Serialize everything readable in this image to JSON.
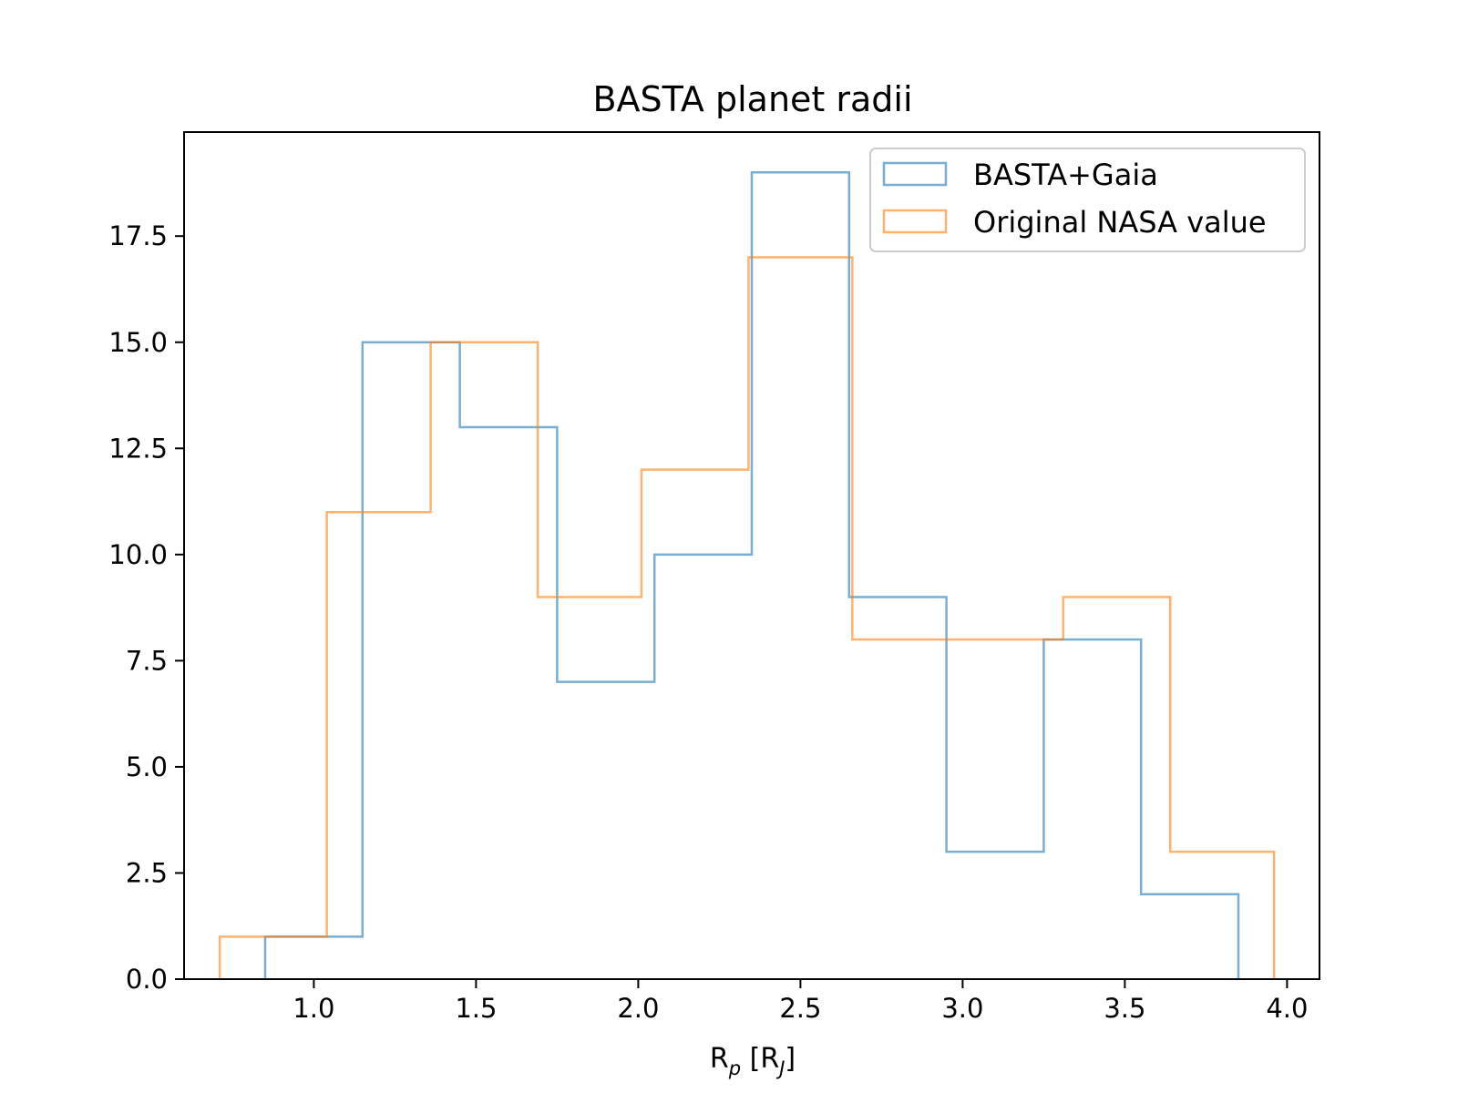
{
  "chart_data": {
    "type": "histogram",
    "title": "BASTA planet radii",
    "xlabel": {
      "base": "R",
      "sub1": "p",
      "mid": " [R",
      "sub2": "J",
      "end": "]"
    },
    "ylabel": "",
    "xlim": [
      0.6,
      4.1
    ],
    "ylim": [
      0,
      19.95
    ],
    "x_ticks": [
      1.0,
      1.5,
      2.0,
      2.5,
      3.0,
      3.5,
      4.0
    ],
    "x_tick_labels": [
      "1.0",
      "1.5",
      "2.0",
      "2.5",
      "3.0",
      "3.5",
      "4.0"
    ],
    "y_ticks": [
      0,
      2.5,
      5.0,
      7.5,
      10.0,
      12.5,
      15.0,
      17.5
    ],
    "y_tick_labels": [
      "0.0",
      "2.5",
      "5.0",
      "7.5",
      "10.0",
      "12.5",
      "15.0",
      "17.5"
    ],
    "grid": false,
    "legend_position": "top-right",
    "series": [
      {
        "name": "BASTA+Gaia",
        "color": "#1f77b4",
        "bin_edges": [
          0.85,
          1.15,
          1.45,
          1.75,
          2.05,
          2.35,
          2.65,
          2.95,
          3.25,
          3.55,
          3.85
        ],
        "counts": [
          1,
          15,
          13,
          7,
          10,
          19,
          9,
          3,
          8,
          2
        ]
      },
      {
        "name": "Original NASA value",
        "color": "#ff7f0e",
        "bin_edges": [
          0.71,
          1.04,
          1.36,
          1.69,
          2.01,
          2.34,
          2.66,
          2.99,
          3.31,
          3.64,
          3.96
        ],
        "counts": [
          1,
          11,
          15,
          9,
          12,
          17,
          8,
          8,
          9,
          3
        ]
      }
    ]
  }
}
